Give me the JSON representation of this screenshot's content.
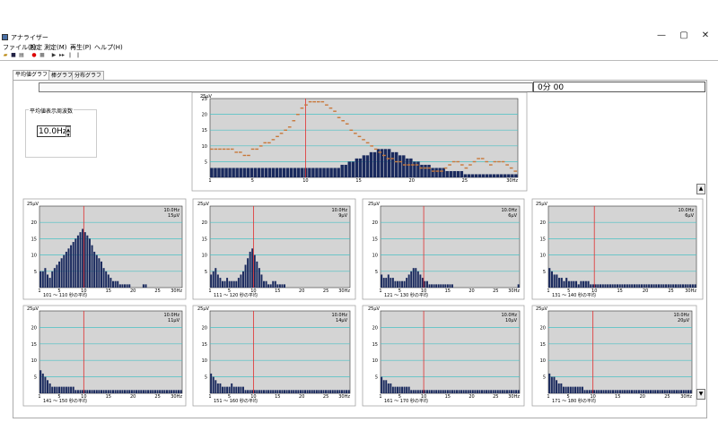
{
  "window": {
    "title": "アナライザー",
    "min": "—",
    "max": "▢",
    "close": "✕"
  },
  "menu": [
    "ファイル(F)",
    "設定",
    "測定(M)",
    "再生(P)",
    "ヘルプ(H)"
  ],
  "tabs": [
    {
      "label": "平均値グラフ",
      "active": true
    },
    {
      "label": "棒グラフ",
      "active": false
    },
    {
      "label": "分布グラフ",
      "active": false
    }
  ],
  "time_display": "0分 00",
  "freq_group": {
    "label": "平均値表示周波数",
    "value": "10.0Hz"
  },
  "colors": {
    "plot_bg": "#d4d4d4",
    "bar": "#1a2a5e",
    "marker": "#c8783a",
    "grid": "#49c1c4",
    "freq_line": "#e03030"
  },
  "chart_data": [
    {
      "type": "bar",
      "id": "main",
      "ylabel": "25μV",
      "yticks": [
        "25",
        "20",
        "15",
        "10",
        "5"
      ],
      "xticks": [
        "1",
        "5",
        "10",
        "15",
        "20",
        "25",
        "30Hz"
      ],
      "ylim": [
        0,
        25
      ],
      "values": [
        3,
        3,
        3,
        3,
        3,
        3,
        3,
        3,
        3,
        3,
        3,
        3,
        3,
        3,
        3,
        3,
        3,
        3,
        3,
        3,
        3,
        3,
        3,
        3,
        3,
        3,
        3,
        3,
        3,
        3,
        3,
        3,
        3,
        3,
        3,
        3,
        4,
        4,
        5,
        5,
        6,
        6,
        7,
        7,
        8,
        8,
        9,
        9,
        9,
        9,
        8,
        8,
        7,
        7,
        6,
        6,
        5,
        5,
        4,
        4,
        4,
        3,
        3,
        3,
        3,
        2,
        2,
        2,
        2,
        2,
        1,
        1,
        1,
        1,
        1,
        1,
        1,
        1,
        1,
        1,
        1,
        1,
        1,
        1,
        1
      ],
      "markers": [
        9,
        9,
        9,
        9,
        9,
        9,
        8,
        8,
        7,
        7,
        9,
        9,
        10,
        11,
        11,
        12,
        13,
        14,
        15,
        16,
        18,
        20,
        22,
        23,
        24,
        24,
        24,
        24,
        23,
        22,
        21,
        19,
        18,
        17,
        15,
        14,
        13,
        12,
        11,
        10,
        9,
        8,
        7,
        6,
        6,
        5,
        5,
        4,
        4,
        4,
        4,
        3,
        3,
        3,
        2,
        2,
        2,
        3,
        4,
        5,
        5,
        4,
        3,
        4,
        5,
        6,
        6,
        5,
        4,
        5,
        5,
        5,
        4,
        3,
        2
      ]
    },
    {
      "type": "bar",
      "id": "p1",
      "caption": "101 ～ 110 秒の平均",
      "info1": "10.0Hz",
      "info2": "15μV",
      "ylabel": "25μV",
      "yticks": [
        "20",
        "15",
        "10",
        "5"
      ],
      "xticks": [
        "1",
        "5",
        "10",
        "15",
        "20",
        "25",
        "30Hz"
      ],
      "ylim": [
        0,
        25
      ],
      "values": [
        5,
        5,
        6,
        4,
        3,
        5,
        6,
        7,
        8,
        9,
        10,
        11,
        12,
        13,
        14,
        15,
        16,
        17,
        18,
        17,
        16,
        15,
        13,
        11,
        10,
        9,
        8,
        6,
        5,
        4,
        3,
        2,
        2,
        2,
        1,
        1,
        1,
        1,
        1,
        0,
        0,
        0,
        0,
        0,
        1,
        1,
        0,
        0,
        0,
        0,
        0,
        0,
        0,
        0,
        0,
        0,
        0,
        0,
        0,
        0,
        0
      ]
    },
    {
      "type": "bar",
      "id": "p2",
      "caption": "111 ～ 120 秒の平均",
      "info1": "10.0Hz",
      "info2": "9μV",
      "ylabel": "25μV",
      "yticks": [
        "20",
        "15",
        "10",
        "5"
      ],
      "xticks": [
        "1",
        "5",
        "10",
        "15",
        "20",
        "25",
        "30Hz"
      ],
      "ylim": [
        0,
        25
      ],
      "values": [
        4,
        5,
        6,
        4,
        3,
        2,
        2,
        3,
        2,
        2,
        2,
        2,
        3,
        4,
        5,
        7,
        9,
        11,
        12,
        10,
        8,
        6,
        4,
        2,
        2,
        1,
        1,
        2,
        2,
        1,
        1,
        1,
        1,
        0,
        0,
        0,
        0,
        0,
        0,
        0,
        0,
        0,
        0,
        0,
        0,
        0,
        0,
        0,
        0,
        0,
        0,
        0,
        0,
        0,
        0,
        0,
        0,
        0,
        0,
        0,
        0
      ]
    },
    {
      "type": "bar",
      "id": "p3",
      "caption": "121 ～ 130 秒の平均",
      "info1": "10.0Hz",
      "info2": "6μV",
      "ylabel": "25μV",
      "yticks": [
        "20",
        "15",
        "10",
        "5"
      ],
      "xticks": [
        "1",
        "5",
        "10",
        "15",
        "20",
        "25",
        "30Hz"
      ],
      "ylim": [
        0,
        25
      ],
      "values": [
        4,
        3,
        3,
        4,
        3,
        3,
        2,
        2,
        2,
        2,
        2,
        3,
        4,
        5,
        6,
        6,
        5,
        4,
        3,
        2,
        2,
        1,
        1,
        1,
        1,
        1,
        1,
        1,
        1,
        1,
        1,
        1,
        0,
        0,
        0,
        0,
        0,
        0,
        0,
        0,
        0,
        0,
        0,
        0,
        0,
        0,
        0,
        0,
        0,
        0,
        0,
        0,
        0,
        0,
        0,
        0,
        0,
        0,
        0,
        0,
        1
      ]
    },
    {
      "type": "bar",
      "id": "p4",
      "caption": "131 ～ 140 秒の平均",
      "info1": "10.0Hz",
      "info2": "6μV",
      "ylabel": "25μV",
      "yticks": [
        "20",
        "15",
        "10",
        "5"
      ],
      "xticks": [
        "1",
        "5",
        "10",
        "15",
        "20",
        "25",
        "30Hz"
      ],
      "ylim": [
        0,
        25
      ],
      "values": [
        6,
        5,
        4,
        4,
        3,
        3,
        2,
        3,
        2,
        2,
        2,
        2,
        1,
        2,
        2,
        2,
        2,
        1,
        1,
        1,
        1,
        1,
        1,
        1,
        1,
        1,
        1,
        1,
        1,
        1,
        1,
        1,
        1,
        1,
        1,
        1,
        1,
        1,
        1,
        1,
        1,
        1,
        1,
        1,
        1,
        1,
        1,
        1,
        1,
        1,
        1,
        1,
        1,
        1,
        1,
        1,
        1,
        1,
        1,
        1,
        1
      ]
    },
    {
      "type": "bar",
      "id": "p5",
      "caption": "141 ～ 150 秒の平均",
      "info1": "10.0Hz",
      "info2": "11μV",
      "ylabel": "25μV",
      "yticks": [
        "20",
        "15",
        "10",
        "5"
      ],
      "xticks": [
        "1",
        "5",
        "10",
        "15",
        "20",
        "25",
        "30Hz"
      ],
      "ylim": [
        0,
        25
      ],
      "values": [
        7,
        6,
        5,
        4,
        3,
        2,
        2,
        2,
        2,
        2,
        2,
        2,
        2,
        2,
        2,
        1,
        1,
        1,
        1,
        1,
        1,
        1,
        1,
        1,
        1,
        1,
        1,
        1,
        1,
        1,
        1,
        1,
        1,
        1,
        1,
        1,
        1,
        1,
        1,
        1,
        1,
        1,
        1,
        1,
        1,
        1,
        1,
        1,
        1,
        1,
        1,
        1,
        1,
        1,
        1,
        1,
        1,
        1,
        1,
        1,
        1
      ]
    },
    {
      "type": "bar",
      "id": "p6",
      "caption": "151 ～ 160 秒の平均",
      "info1": "10.0Hz",
      "info2": "14μV",
      "ylabel": "25μV",
      "yticks": [
        "20",
        "15",
        "10",
        "5"
      ],
      "xticks": [
        "1",
        "5",
        "10",
        "15",
        "20",
        "25",
        "30Hz"
      ],
      "ylim": [
        0,
        25
      ],
      "values": [
        6,
        5,
        4,
        3,
        3,
        2,
        2,
        2,
        2,
        3,
        2,
        2,
        2,
        2,
        2,
        1,
        1,
        1,
        1,
        1,
        1,
        1,
        1,
        1,
        1,
        1,
        1,
        1,
        1,
        1,
        1,
        1,
        1,
        1,
        1,
        1,
        1,
        1,
        1,
        1,
        1,
        1,
        1,
        1,
        1,
        1,
        1,
        1,
        1,
        1,
        1,
        1,
        1,
        1,
        1,
        1,
        1,
        1,
        1,
        1,
        1
      ]
    },
    {
      "type": "bar",
      "id": "p7",
      "caption": "161 ～ 170 秒の平均",
      "info1": "10.0Hz",
      "info2": "10μV",
      "ylabel": "25μV",
      "yticks": [
        "20",
        "15",
        "10",
        "5"
      ],
      "xticks": [
        "1",
        "5",
        "10",
        "15",
        "20",
        "25",
        "30Hz"
      ],
      "ylim": [
        0,
        25
      ],
      "values": [
        5,
        4,
        4,
        3,
        3,
        2,
        2,
        2,
        2,
        2,
        2,
        2,
        2,
        1,
        1,
        1,
        1,
        1,
        1,
        1,
        1,
        1,
        1,
        1,
        1,
        1,
        1,
        1,
        1,
        1,
        1,
        1,
        1,
        1,
        1,
        1,
        1,
        1,
        1,
        1,
        1,
        1,
        1,
        1,
        1,
        1,
        1,
        1,
        1,
        1,
        1,
        1,
        1,
        1,
        1,
        1,
        1,
        1,
        1,
        1,
        1
      ]
    },
    {
      "type": "bar",
      "id": "p8",
      "caption": "171 ～ 180 秒の平均",
      "info1": "10.0Hz",
      "info2": "20μV",
      "ylabel": "25μV",
      "yticks": [
        "20",
        "15",
        "10",
        "5"
      ],
      "xticks": [
        "1",
        "5",
        "10",
        "15",
        "20",
        "25",
        "30Hz"
      ],
      "ylim": [
        0,
        25
      ],
      "values": [
        6,
        5,
        5,
        4,
        3,
        3,
        2,
        2,
        2,
        2,
        2,
        2,
        2,
        2,
        2,
        1,
        1,
        1,
        1,
        1,
        1,
        1,
        1,
        1,
        1,
        1,
        1,
        1,
        1,
        1,
        1,
        1,
        1,
        1,
        1,
        1,
        1,
        1,
        1,
        1,
        1,
        1,
        1,
        1,
        1,
        1,
        1,
        1,
        1,
        1,
        1,
        1,
        1,
        1,
        1,
        1,
        1,
        1,
        1,
        1,
        1
      ]
    }
  ]
}
